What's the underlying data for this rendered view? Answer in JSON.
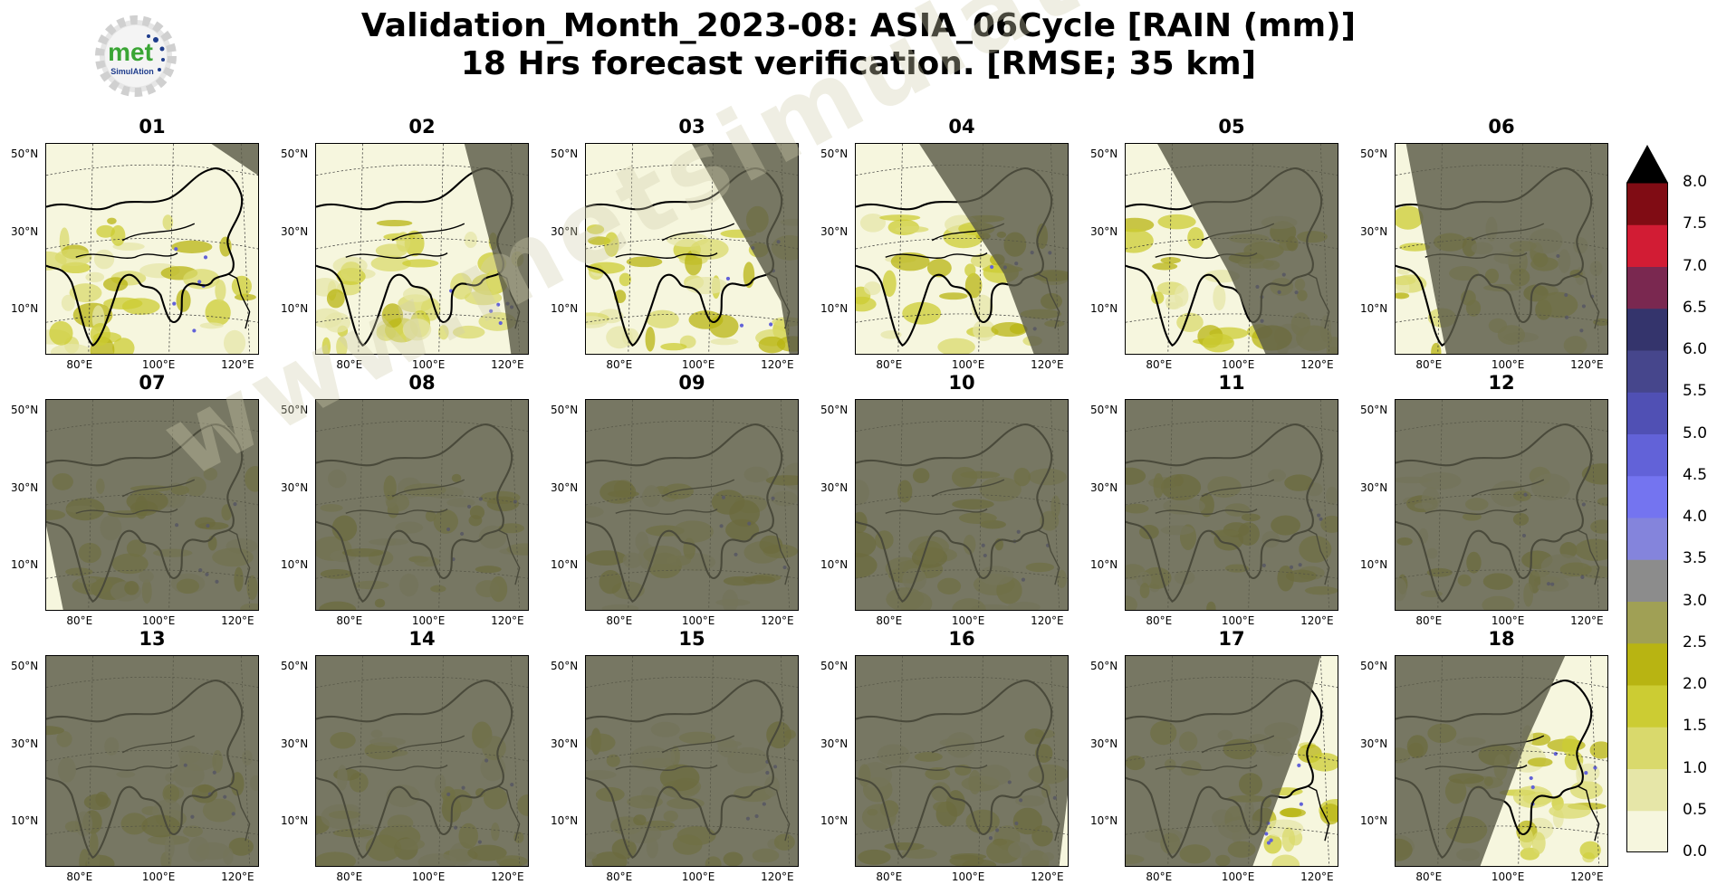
{
  "title_line1": "Validation_Month_2023-08: ASIA_06Cycle [RAIN (mm)]",
  "title_line2": "18 Hrs forecast verification.  [RMSE; 35 km]",
  "logo": {
    "text_big": "met",
    "text_small": "SimulAtion",
    "icon": "gear-logo-icon"
  },
  "watermark": "www.metsimulation.com",
  "panels": [
    {
      "label": "01",
      "night": "corner"
    },
    {
      "label": "02",
      "night": "right"
    },
    {
      "label": "03",
      "night": "right-wide"
    },
    {
      "label": "04",
      "night": "half"
    },
    {
      "label": "05",
      "night": "most"
    },
    {
      "label": "06",
      "night": "nearly-all"
    },
    {
      "label": "07",
      "night": "all-left-sliver"
    },
    {
      "label": "08",
      "night": "all"
    },
    {
      "label": "09",
      "night": "all"
    },
    {
      "label": "10",
      "night": "all"
    },
    {
      "label": "11",
      "night": "all"
    },
    {
      "label": "12",
      "night": "all"
    },
    {
      "label": "13",
      "night": "all"
    },
    {
      "label": "14",
      "night": "all"
    },
    {
      "label": "15",
      "night": "all"
    },
    {
      "label": "16",
      "night": "all-right-sliver"
    },
    {
      "label": "17",
      "night": "day-right"
    },
    {
      "label": "18",
      "night": "day-right-wide"
    }
  ],
  "lat_ticks": [
    "50°N",
    "30°N",
    "10°N"
  ],
  "lon_ticks": [
    "80°E",
    "100°E",
    "120°E"
  ],
  "chart_data": {
    "type": "heatmap",
    "title": "Validation_Month_2023-08: ASIA_06Cycle [RAIN (mm)] 18 Hrs forecast verification.  [RMSE; 35 km]",
    "panel_labels": [
      "01",
      "02",
      "03",
      "04",
      "05",
      "06",
      "07",
      "08",
      "09",
      "10",
      "11",
      "12",
      "13",
      "14",
      "15",
      "16",
      "17",
      "18"
    ],
    "colorbar": {
      "levels": [
        0.0,
        0.5,
        1.0,
        1.5,
        2.0,
        2.5,
        3.0,
        3.5,
        4.0,
        4.5,
        5.0,
        5.5,
        6.0,
        6.5,
        7.0,
        7.5,
        8.0
      ],
      "tick_labels": [
        "0.0",
        "0.5",
        "1.0",
        "1.5",
        "2.0",
        "2.5",
        "3.0",
        "3.5",
        "4.0",
        "4.5",
        "5.0",
        "5.5",
        "6.0",
        "6.5",
        "7.0",
        "7.5",
        "8.0"
      ],
      "colors": [
        "#f6f6de",
        "#e6e6a8",
        "#d9d96c",
        "#cccc33",
        "#b8b412",
        "#a0a055",
        "#8c8c8c",
        "#8484dc",
        "#7474f0",
        "#6262d8",
        "#5050b4",
        "#46468c",
        "#34346c",
        "#7a2850",
        "#d21c34",
        "#800c14"
      ],
      "extend": "max",
      "extend_color": "#000000"
    }
  }
}
